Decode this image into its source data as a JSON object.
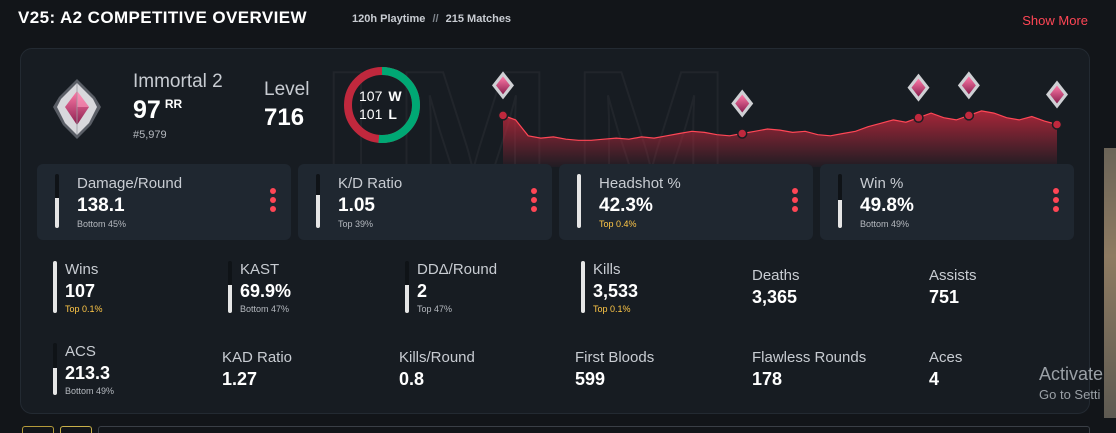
{
  "header": {
    "title": "V25: A2 COMPETITIVE OVERVIEW",
    "playtime": "120h Playtime",
    "separator": "//",
    "matches": "215 Matches",
    "show_more": "Show More"
  },
  "profile": {
    "rank_name": "Immortal 2",
    "rr_value": "97",
    "rr_unit": "RR",
    "leaderboard": "#5,979",
    "level_label": "Level",
    "level_value": "716"
  },
  "winloss": {
    "wins_value": "107",
    "wins_label": "W",
    "losses_value": "101",
    "losses_label": "L",
    "win_color": "#00a874",
    "loss_color": "#c0283d"
  },
  "rank_graph": {
    "values": [
      62,
      58,
      44,
      42,
      43,
      41,
      40,
      40,
      41,
      42,
      41,
      43,
      42,
      44,
      46,
      48,
      47,
      45,
      44,
      46,
      48,
      50,
      49,
      47,
      48,
      45,
      44,
      46,
      48,
      52,
      55,
      58,
      56,
      60,
      64,
      60,
      58,
      62,
      66,
      64,
      60,
      58,
      61,
      57,
      54
    ],
    "markers": [
      {
        "index": 0
      },
      {
        "index": 19
      },
      {
        "index": 33
      },
      {
        "index": 37
      },
      {
        "index": 44
      }
    ],
    "color": "#c0283d"
  },
  "stat_cards": [
    {
      "label": "Damage/Round",
      "value": "138.1",
      "percentile": "Bottom 45%",
      "level": 0.55,
      "highlight": false
    },
    {
      "label": "K/D Ratio",
      "value": "1.05",
      "percentile": "Top 39%",
      "level": 0.61,
      "highlight": false
    },
    {
      "label": "Headshot %",
      "value": "42.3%",
      "percentile": "Top 0.4%",
      "level": 0.996,
      "highlight": true
    },
    {
      "label": "Win %",
      "value": "49.8%",
      "percentile": "Bottom 49%",
      "level": 0.51,
      "highlight": false
    }
  ],
  "mini_stats": [
    {
      "label": "Wins",
      "value": "107",
      "percentile": "Top 0.1%",
      "level": 0.999,
      "highlight": true
    },
    {
      "label": "KAST",
      "value": "69.9%",
      "percentile": "Bottom 47%",
      "level": 0.53,
      "highlight": false
    },
    {
      "label": "DDΔ/Round",
      "value": "2",
      "percentile": "Top 47%",
      "level": 0.53,
      "highlight": false
    },
    {
      "label": "Kills",
      "value": "3,533",
      "percentile": "Top 0.1%",
      "level": 0.999,
      "highlight": true
    },
    {
      "label": "Deaths",
      "value": "3,365"
    },
    {
      "label": "Assists",
      "value": "751"
    },
    {
      "label": "ACS",
      "value": "213.3",
      "percentile": "Bottom 49%",
      "level": 0.51,
      "highlight": false
    },
    {
      "label": "KAD Ratio",
      "value": "1.27"
    },
    {
      "label": "Kills/Round",
      "value": "0.8"
    },
    {
      "label": "First Bloods",
      "value": "599"
    },
    {
      "label": "Flawless Rounds",
      "value": "178"
    },
    {
      "label": "Aces",
      "value": "4"
    }
  ],
  "os_overlay": {
    "line1": "Activate",
    "line2": "Go to Setti"
  },
  "icons": {
    "rank": "immortal-rank-icon",
    "menu": "kebab-menu-icon"
  }
}
